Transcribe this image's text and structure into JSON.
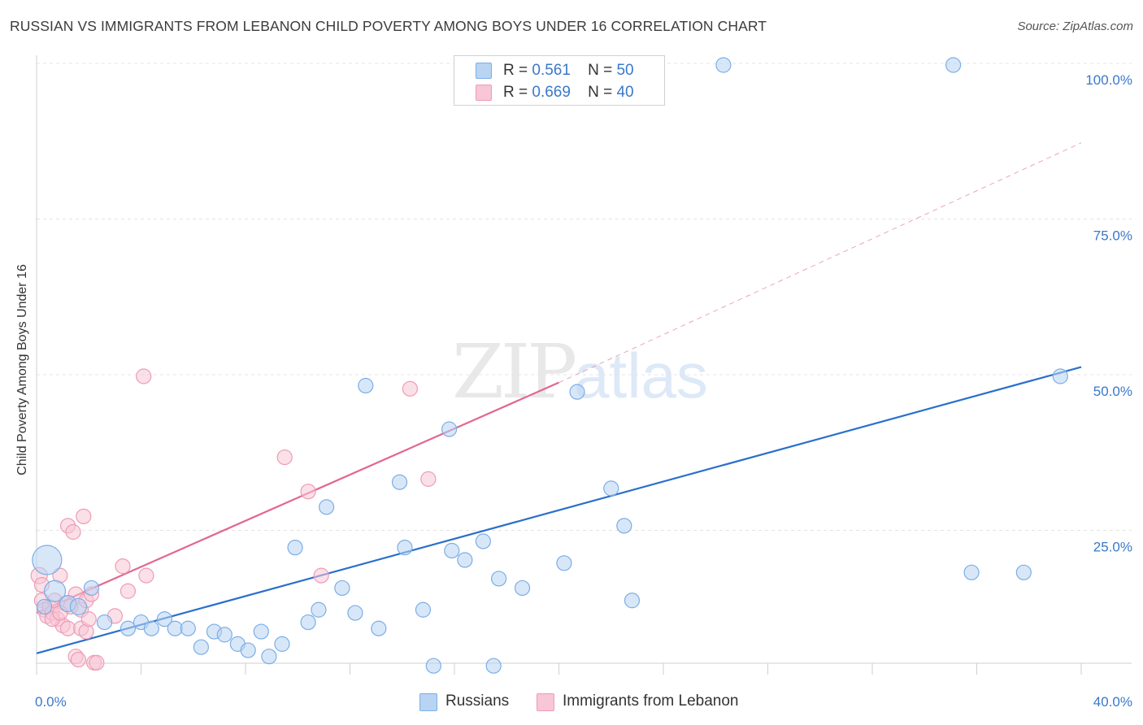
{
  "chart_data": {
    "type": "scatter",
    "title": "RUSSIAN VS IMMIGRANTS FROM LEBANON CHILD POVERTY AMONG BOYS UNDER 16 CORRELATION CHART",
    "source": "Source: ZipAtlas.com",
    "xlabel": "",
    "ylabel": "Child Poverty Among Boys Under 16",
    "xlim": [
      0,
      40
    ],
    "ylim": [
      0,
      105
    ],
    "x_tick_labels": [
      "0.0%",
      "40.0%"
    ],
    "y_tick_labels": [
      "100.0%",
      "75.0%",
      "50.0%",
      "25.0%"
    ],
    "y_tick_values": [
      100,
      75,
      50,
      25
    ],
    "grid": true,
    "legend": {
      "position": "top-center",
      "entries": [
        {
          "series": "Russians",
          "r_label": "R =",
          "r": "0.561",
          "n_label": "N =",
          "n": "50"
        },
        {
          "series": "Immigrants from Lebanon",
          "r_label": "R =",
          "r": "0.669",
          "n_label": "N =",
          "n": "40"
        }
      ]
    },
    "series": [
      {
        "name": "Russians",
        "color": "#7aaee6",
        "fill": "#b8d4f2",
        "trend": {
          "x": [
            0,
            40
          ],
          "y": [
            5.5,
            51.5
          ],
          "style": "solid",
          "color": "#2a6fcc"
        },
        "points": [
          {
            "x": 0.4,
            "y": 20.5,
            "s": 18
          },
          {
            "x": 0.7,
            "y": 15.5,
            "s": 13
          },
          {
            "x": 1.2,
            "y": 13.5,
            "s": 10
          },
          {
            "x": 1.6,
            "y": 13.0,
            "s": 10
          },
          {
            "x": 2.1,
            "y": 16.0,
            "s": 9
          },
          {
            "x": 2.6,
            "y": 10.5,
            "s": 9
          },
          {
            "x": 3.5,
            "y": 9.5,
            "s": 9
          },
          {
            "x": 4.0,
            "y": 10.5,
            "s": 9
          },
          {
            "x": 4.4,
            "y": 9.5,
            "s": 9
          },
          {
            "x": 4.9,
            "y": 11.0,
            "s": 9
          },
          {
            "x": 5.3,
            "y": 9.5,
            "s": 9
          },
          {
            "x": 5.8,
            "y": 9.5,
            "s": 9
          },
          {
            "x": 6.3,
            "y": 6.5,
            "s": 9
          },
          {
            "x": 6.8,
            "y": 9.0,
            "s": 9
          },
          {
            "x": 7.2,
            "y": 8.5,
            "s": 9
          },
          {
            "x": 7.7,
            "y": 7.0,
            "s": 9
          },
          {
            "x": 8.1,
            "y": 6.0,
            "s": 9
          },
          {
            "x": 8.6,
            "y": 9.0,
            "s": 9
          },
          {
            "x": 8.9,
            "y": 5.0,
            "s": 9
          },
          {
            "x": 9.4,
            "y": 7.0,
            "s": 9
          },
          {
            "x": 9.9,
            "y": 22.5,
            "s": 9
          },
          {
            "x": 10.4,
            "y": 10.5,
            "s": 9
          },
          {
            "x": 10.8,
            "y": 12.5,
            "s": 9
          },
          {
            "x": 11.1,
            "y": 29.0,
            "s": 9
          },
          {
            "x": 11.7,
            "y": 16.0,
            "s": 9
          },
          {
            "x": 12.2,
            "y": 12.0,
            "s": 9
          },
          {
            "x": 12.6,
            "y": 48.5,
            "s": 9
          },
          {
            "x": 13.1,
            "y": 9.5,
            "s": 9
          },
          {
            "x": 13.9,
            "y": 33.0,
            "s": 9
          },
          {
            "x": 14.1,
            "y": 22.5,
            "s": 9
          },
          {
            "x": 14.8,
            "y": 12.5,
            "s": 9
          },
          {
            "x": 15.2,
            "y": 3.5,
            "s": 9
          },
          {
            "x": 15.8,
            "y": 41.5,
            "s": 9
          },
          {
            "x": 15.9,
            "y": 22.0,
            "s": 9
          },
          {
            "x": 16.4,
            "y": 20.5,
            "s": 9
          },
          {
            "x": 17.1,
            "y": 23.5,
            "s": 9
          },
          {
            "x": 17.5,
            "y": 3.5,
            "s": 9
          },
          {
            "x": 17.7,
            "y": 17.5,
            "s": 9
          },
          {
            "x": 18.6,
            "y": 16.0,
            "s": 9
          },
          {
            "x": 20.2,
            "y": 20.0,
            "s": 9
          },
          {
            "x": 20.7,
            "y": 47.5,
            "s": 9
          },
          {
            "x": 22.0,
            "y": 32.0,
            "s": 9
          },
          {
            "x": 22.5,
            "y": 26.0,
            "s": 9
          },
          {
            "x": 22.8,
            "y": 14.0,
            "s": 9
          },
          {
            "x": 26.3,
            "y": 100.0,
            "s": 9
          },
          {
            "x": 35.1,
            "y": 100.0,
            "s": 9
          },
          {
            "x": 35.8,
            "y": 18.5,
            "s": 9
          },
          {
            "x": 37.8,
            "y": 18.5,
            "s": 9
          },
          {
            "x": 39.2,
            "y": 50.0,
            "s": 9
          },
          {
            "x": 0.3,
            "y": 13.0,
            "s": 9
          }
        ]
      },
      {
        "name": "Immigrants from Lebanon",
        "color": "#ee9bb6",
        "fill": "#f8c6d6",
        "trend": {
          "x": [
            0,
            20
          ],
          "y": [
            12.0,
            49.0
          ],
          "style": "solid",
          "color": "#e2668f",
          "extension": {
            "x": [
              20,
              40
            ],
            "y": [
              49.0,
              87.5
            ],
            "style": "dashed"
          }
        },
        "points": [
          {
            "x": 0.1,
            "y": 18.0,
            "s": 10
          },
          {
            "x": 0.2,
            "y": 14.0,
            "s": 9
          },
          {
            "x": 0.3,
            "y": 12.5,
            "s": 9
          },
          {
            "x": 0.4,
            "y": 11.5,
            "s": 9
          },
          {
            "x": 0.5,
            "y": 13.0,
            "s": 9
          },
          {
            "x": 0.6,
            "y": 12.0,
            "s": 9
          },
          {
            "x": 0.7,
            "y": 14.0,
            "s": 9
          },
          {
            "x": 0.8,
            "y": 11.0,
            "s": 9
          },
          {
            "x": 0.9,
            "y": 18.0,
            "s": 9
          },
          {
            "x": 1.0,
            "y": 10.0,
            "s": 9
          },
          {
            "x": 1.1,
            "y": 13.5,
            "s": 9
          },
          {
            "x": 1.2,
            "y": 9.5,
            "s": 9
          },
          {
            "x": 1.2,
            "y": 26.0,
            "s": 9
          },
          {
            "x": 1.4,
            "y": 25.0,
            "s": 9
          },
          {
            "x": 1.5,
            "y": 15.0,
            "s": 9
          },
          {
            "x": 1.5,
            "y": 5.0,
            "s": 9
          },
          {
            "x": 1.6,
            "y": 4.5,
            "s": 9
          },
          {
            "x": 1.7,
            "y": 12.5,
            "s": 9
          },
          {
            "x": 1.7,
            "y": 9.5,
            "s": 9
          },
          {
            "x": 1.8,
            "y": 27.5,
            "s": 9
          },
          {
            "x": 1.9,
            "y": 14.0,
            "s": 9
          },
          {
            "x": 1.9,
            "y": 9.0,
            "s": 9
          },
          {
            "x": 2.0,
            "y": 11.0,
            "s": 9
          },
          {
            "x": 2.1,
            "y": 15.0,
            "s": 9
          },
          {
            "x": 2.2,
            "y": 4.0,
            "s": 9
          },
          {
            "x": 2.3,
            "y": 4.0,
            "s": 9
          },
          {
            "x": 3.0,
            "y": 11.5,
            "s": 9
          },
          {
            "x": 3.3,
            "y": 19.5,
            "s": 9
          },
          {
            "x": 3.5,
            "y": 15.5,
            "s": 9
          },
          {
            "x": 4.1,
            "y": 50.0,
            "s": 9
          },
          {
            "x": 4.2,
            "y": 18.0,
            "s": 9
          },
          {
            "x": 9.5,
            "y": 37.0,
            "s": 9
          },
          {
            "x": 10.4,
            "y": 31.5,
            "s": 9
          },
          {
            "x": 10.9,
            "y": 18.0,
            "s": 9
          },
          {
            "x": 14.3,
            "y": 48.0,
            "s": 9
          },
          {
            "x": 15.0,
            "y": 33.5,
            "s": 9
          },
          {
            "x": 0.2,
            "y": 16.5,
            "s": 9
          },
          {
            "x": 0.6,
            "y": 11.0,
            "s": 9
          },
          {
            "x": 1.3,
            "y": 13.0,
            "s": 9
          },
          {
            "x": 0.9,
            "y": 12.0,
            "s": 9
          }
        ]
      }
    ]
  },
  "watermark": {
    "zip": "ZIP",
    "atlas": "atlas"
  }
}
